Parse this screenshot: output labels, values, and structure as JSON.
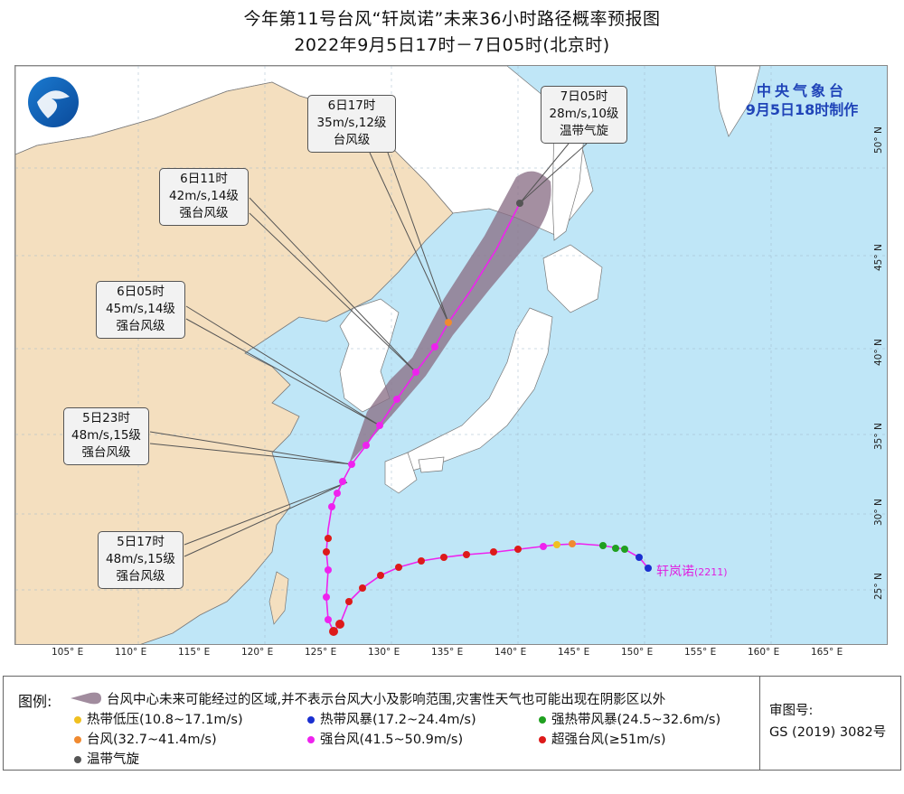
{
  "title_line1": "今年第11号台风“轩岚诺”未来36小时路径概率预报图",
  "title_line2": "2022年9月5日17时－7日05时(北京时)",
  "agency": {
    "name": "中央气象台",
    "made": "9月5日18时制作"
  },
  "storm_label": "轩岚诺",
  "storm_code": "(2211)",
  "lon_ticks": [
    "105° E",
    "110° E",
    "115° E",
    "120° E",
    "125° E",
    "130° E",
    "135° E",
    "140° E",
    "145° E",
    "150° E",
    "155° E",
    "160° E",
    "165° E"
  ],
  "lat_ticks": [
    "50° N",
    "45° N",
    "40° N",
    "35° N",
    "30° N",
    "25° N"
  ],
  "forecast_points": [
    {
      "time": "5日17时",
      "wind": "48m/s,15级",
      "level": "强台风级"
    },
    {
      "time": "5日23时",
      "wind": "48m/s,15级",
      "level": "强台风级"
    },
    {
      "time": "6日05时",
      "wind": "45m/s,14级",
      "level": "强台风级"
    },
    {
      "time": "6日11时",
      "wind": "42m/s,14级",
      "level": "强台风级"
    },
    {
      "time": "6日17时",
      "wind": "35m/s,12级",
      "level": "台风级"
    },
    {
      "time": "7日05时",
      "wind": "28m/s,10级",
      "level": "温带气旋"
    }
  ],
  "legend": {
    "label": "图例:",
    "cone_text": "台风中心未来可能经过的区域,并不表示台风大小及影响范围,灾害性天气也可能出现在阴影区以外",
    "items": [
      {
        "text": "热带低压(10.8~17.1m/s)",
        "color": "#f0c020"
      },
      {
        "text": "热带风暴(17.2~24.4m/s)",
        "color": "#1a2fd0"
      },
      {
        "text": "强热带风暴(24.5~32.6m/s)",
        "color": "#20a020"
      },
      {
        "text": "台风(32.7~41.4m/s)",
        "color": "#f08a30"
      },
      {
        "text": "强台风(41.5~50.9m/s)",
        "color": "#ee22ee"
      },
      {
        "text": "超强台风(≥51m/s)",
        "color": "#dd1a1a"
      },
      {
        "text": "温带气旋",
        "color": "#555555"
      }
    ],
    "review_label": "审图号:",
    "review_code": "GS (2019) 3082号"
  },
  "colors": {
    "sea": "#bfe6f7",
    "land_china": "#f4dfbf",
    "land_other": "#ffffff",
    "track": "#ee22ee",
    "cone": "#8a6f86"
  }
}
